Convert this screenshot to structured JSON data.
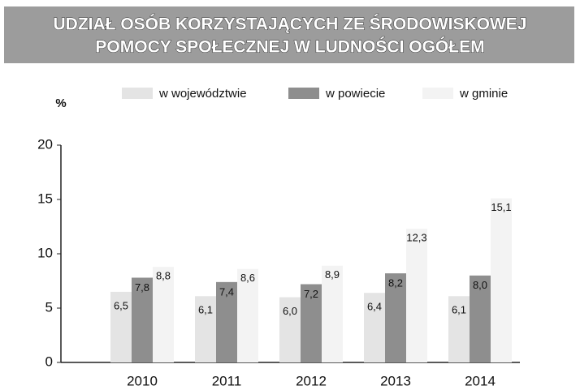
{
  "chart_data": {
    "type": "bar",
    "title": [
      "UDZIAŁ OSÓB KORZYSTAJĄCYCH ZE ŚRODOWISKOWEJ",
      "POMOCY SPOŁECZNEJ W LUDNOŚCI OGÓŁEM"
    ],
    "y_label": "%",
    "categories": [
      "2010",
      "2011",
      "2012",
      "2013",
      "2014"
    ],
    "series": [
      {
        "name": "w województwie",
        "color": "#e4e4e4",
        "values": [
          6.5,
          6.1,
          6.0,
          6.4,
          6.1
        ],
        "value_labels": [
          "6,5",
          "6,1",
          "6,0",
          "6,4",
          "6,1"
        ]
      },
      {
        "name": "w powiecie",
        "color": "#8e8e8e",
        "values": [
          7.8,
          7.4,
          7.2,
          8.2,
          8.0
        ],
        "value_labels": [
          "7,8",
          "7,4",
          "7,2",
          "8,2",
          "8,0"
        ]
      },
      {
        "name": "w gminie",
        "color": "#f3f3f3",
        "values": [
          8.8,
          8.6,
          8.9,
          12.3,
          15.1
        ],
        "value_labels": [
          "8,8",
          "8,6",
          "8,9",
          "12,3",
          "15,1"
        ]
      }
    ],
    "ylim": [
      0,
      20
    ],
    "yticks": [
      0,
      5,
      10,
      15,
      20
    ]
  }
}
